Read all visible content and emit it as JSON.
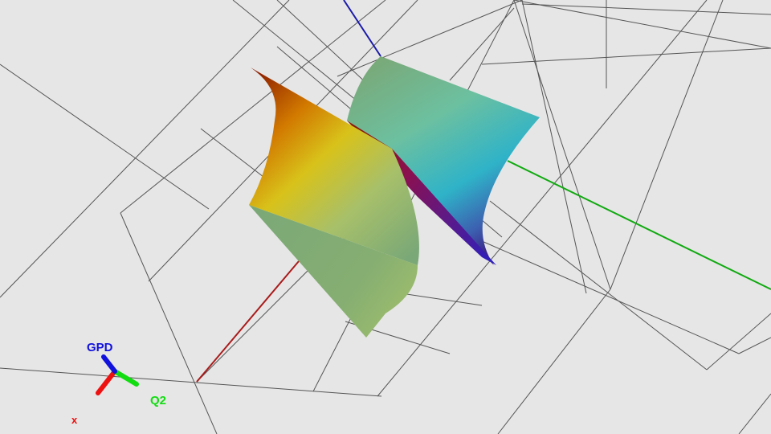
{
  "scene": {
    "background": "#e6e6e6",
    "grid_color": "#555555",
    "axes": {
      "x": {
        "label": "x",
        "color": "#cc1111"
      },
      "q2": {
        "label": "Q2",
        "color": "#11aa11"
      },
      "gpd": {
        "label": "GPD",
        "color": "#1111cc"
      }
    },
    "orientation_widget": {
      "x_label": "x",
      "q2_label": "Q2",
      "gpd_label": "GPD"
    },
    "surface": {
      "colormap": [
        "#2a0a6a",
        "#3c2f9a",
        "#2aa3c7",
        "#66c2a5",
        "#7aa877",
        "#c5c21a",
        "#d99a00",
        "#8a1a00"
      ]
    }
  }
}
